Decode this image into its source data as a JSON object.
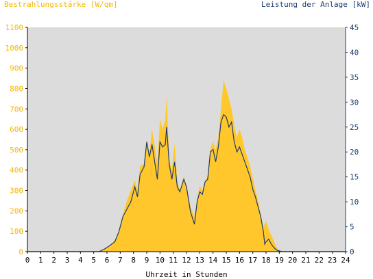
{
  "chart_data": {
    "type": "area",
    "ylabel_left": "Bestrahlungsstärke [W/qm]",
    "ylabel_right": "Leistung der Anlage [kW]",
    "xlabel": "Uhrzeit in Stunden",
    "xlim": [
      0,
      24
    ],
    "ylim_left": [
      0,
      1100
    ],
    "ylim_right": [
      0,
      45
    ],
    "x_ticks": [
      "0",
      "1",
      "2",
      "3",
      "4",
      "5",
      "6",
      "7",
      "8",
      "9",
      "10",
      "11",
      "12",
      "13",
      "14",
      "15",
      "16",
      "17",
      "18",
      "19",
      "20",
      "21",
      "22",
      "23",
      "24"
    ],
    "y_left_ticks": [
      "0",
      "100",
      "200",
      "300",
      "400",
      "500",
      "600",
      "700",
      "800",
      "900",
      "1000",
      "1100"
    ],
    "y_right_ticks": [
      "0",
      "5",
      "10",
      "15",
      "20",
      "25",
      "30",
      "35",
      "40",
      "45"
    ],
    "grid": false,
    "colors": {
      "irradiance": "#ffc72c",
      "power": "#1e3a6e",
      "plot_bg": "#dcdcdc",
      "left_axis_text": "#f5b800",
      "right_axis_text": "#1e3a6e"
    },
    "series": [
      {
        "name": "Bestrahlungsstärke [W/qm]",
        "axis": "left",
        "points": [
          [
            0,
            0
          ],
          [
            5.2,
            0
          ],
          [
            5.6,
            5
          ],
          [
            6.0,
            20
          ],
          [
            6.4,
            40
          ],
          [
            6.8,
            80
          ],
          [
            7.2,
            180
          ],
          [
            7.5,
            250
          ],
          [
            7.8,
            300
          ],
          [
            8.1,
            350
          ],
          [
            8.3,
            300
          ],
          [
            8.5,
            420
          ],
          [
            8.8,
            430
          ],
          [
            9.0,
            550
          ],
          [
            9.2,
            480
          ],
          [
            9.4,
            600
          ],
          [
            9.6,
            520
          ],
          [
            9.8,
            430
          ],
          [
            10.0,
            650
          ],
          [
            10.2,
            600
          ],
          [
            10.4,
            650
          ],
          [
            10.5,
            760
          ],
          [
            10.7,
            450
          ],
          [
            10.9,
            400
          ],
          [
            11.1,
            530
          ],
          [
            11.3,
            350
          ],
          [
            11.5,
            300
          ],
          [
            11.8,
            370
          ],
          [
            12.0,
            320
          ],
          [
            12.3,
            220
          ],
          [
            12.6,
            170
          ],
          [
            12.8,
            260
          ],
          [
            13.0,
            320
          ],
          [
            13.2,
            300
          ],
          [
            13.4,
            350
          ],
          [
            13.6,
            370
          ],
          [
            13.8,
            500
          ],
          [
            14.0,
            540
          ],
          [
            14.2,
            500
          ],
          [
            14.4,
            560
          ],
          [
            14.6,
            700
          ],
          [
            14.8,
            840
          ],
          [
            15.0,
            800
          ],
          [
            15.2,
            750
          ],
          [
            15.4,
            700
          ],
          [
            15.6,
            620
          ],
          [
            15.8,
            560
          ],
          [
            16.0,
            600
          ],
          [
            16.2,
            560
          ],
          [
            16.4,
            500
          ],
          [
            16.6,
            460
          ],
          [
            16.8,
            420
          ],
          [
            17.0,
            360
          ],
          [
            17.2,
            300
          ],
          [
            17.4,
            250
          ],
          [
            17.6,
            180
          ],
          [
            17.8,
            120
          ],
          [
            18.0,
            150
          ],
          [
            18.2,
            110
          ],
          [
            18.4,
            80
          ],
          [
            18.6,
            50
          ],
          [
            18.8,
            20
          ],
          [
            19.0,
            5
          ],
          [
            19.3,
            0
          ],
          [
            24,
            0
          ]
        ]
      },
      {
        "name": "Leistung der Anlage [kW]",
        "axis": "right",
        "points": [
          [
            0,
            0
          ],
          [
            5.4,
            0
          ],
          [
            5.8,
            0.5
          ],
          [
            6.2,
            1.2
          ],
          [
            6.6,
            2
          ],
          [
            6.9,
            4
          ],
          [
            7.2,
            7
          ],
          [
            7.5,
            8.5
          ],
          [
            7.8,
            10
          ],
          [
            8.1,
            13
          ],
          [
            8.3,
            11
          ],
          [
            8.5,
            15.5
          ],
          [
            8.8,
            17
          ],
          [
            9.0,
            22
          ],
          [
            9.2,
            19
          ],
          [
            9.4,
            21.5
          ],
          [
            9.6,
            18
          ],
          [
            9.8,
            14.5
          ],
          [
            10.0,
            22
          ],
          [
            10.2,
            21
          ],
          [
            10.4,
            21.5
          ],
          [
            10.5,
            25
          ],
          [
            10.7,
            17.5
          ],
          [
            10.9,
            14.5
          ],
          [
            11.1,
            18
          ],
          [
            11.3,
            13
          ],
          [
            11.5,
            12
          ],
          [
            11.8,
            14.5
          ],
          [
            12.0,
            13
          ],
          [
            12.3,
            8
          ],
          [
            12.6,
            5.5
          ],
          [
            12.8,
            10
          ],
          [
            13.0,
            12
          ],
          [
            13.2,
            11.5
          ],
          [
            13.4,
            14
          ],
          [
            13.6,
            14.5
          ],
          [
            13.8,
            20
          ],
          [
            14.0,
            20.5
          ],
          [
            14.2,
            18
          ],
          [
            14.4,
            21
          ],
          [
            14.6,
            26
          ],
          [
            14.8,
            27.5
          ],
          [
            15.0,
            27
          ],
          [
            15.2,
            25
          ],
          [
            15.4,
            26
          ],
          [
            15.6,
            22
          ],
          [
            15.8,
            20
          ],
          [
            16.0,
            21
          ],
          [
            16.2,
            19.5
          ],
          [
            16.4,
            18
          ],
          [
            16.6,
            16.5
          ],
          [
            16.8,
            15
          ],
          [
            17.0,
            12.5
          ],
          [
            17.2,
            11
          ],
          [
            17.4,
            9
          ],
          [
            17.6,
            7
          ],
          [
            17.8,
            4
          ],
          [
            17.9,
            1.5
          ],
          [
            18.0,
            2
          ],
          [
            18.2,
            2.5
          ],
          [
            18.4,
            1.5
          ],
          [
            18.6,
            0.8
          ],
          [
            18.8,
            0.3
          ],
          [
            19.2,
            0
          ],
          [
            24,
            0
          ]
        ]
      }
    ]
  }
}
